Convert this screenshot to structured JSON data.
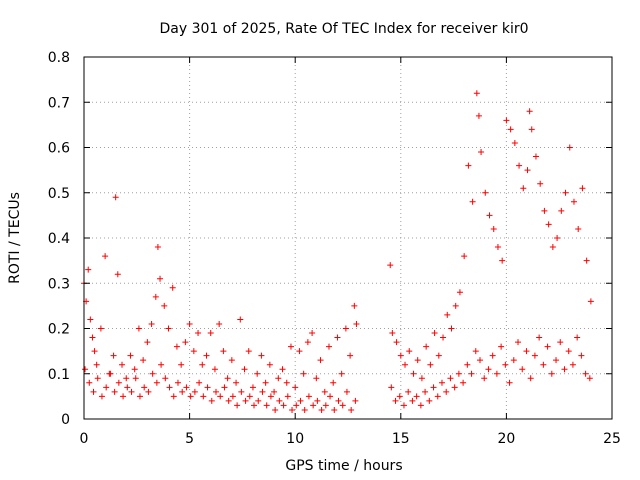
{
  "chart_data": {
    "type": "scatter",
    "title": "Day 301 of 2025, Rate Of TEC Index for receiver kir0",
    "xlabel": "GPS time / hours",
    "ylabel": "ROTI / TECUs",
    "xlim": [
      0,
      25
    ],
    "ylim": [
      0,
      0.8
    ],
    "x_ticks": [
      0,
      5,
      10,
      15,
      20,
      25
    ],
    "y_ticks": [
      0,
      0.1,
      0.2,
      0.3,
      0.4,
      0.5,
      0.6,
      0.7,
      0.8
    ],
    "x_tick_labels": [
      "0",
      "5",
      "10",
      "15",
      "20",
      "25"
    ],
    "y_tick_labels": [
      "0",
      "0.1",
      "0.2",
      "0.3",
      "0.4",
      "0.5",
      "0.6",
      "0.7",
      "0.8"
    ],
    "grid": true,
    "marker": "plus",
    "colors": {
      "points": "#ff0000",
      "grid": "#a0a0a0",
      "axes": "#000000"
    },
    "series": [
      {
        "x": [
          0.0,
          0.1,
          0.2,
          0.3,
          0.4,
          0.5,
          0.6,
          0.8,
          1.0,
          1.2,
          1.4,
          1.5,
          1.6,
          1.8,
          2.0,
          2.2,
          2.4,
          2.6,
          2.8,
          3.0,
          3.2,
          3.4,
          3.5,
          3.6,
          3.8,
          4.0,
          4.2,
          4.4,
          4.6,
          4.8,
          5.0,
          5.2,
          5.4,
          5.6,
          5.8,
          6.0,
          6.2,
          6.4,
          6.6,
          6.8,
          7.0,
          7.2,
          7.4,
          7.6,
          7.8,
          8.0,
          8.2,
          8.4,
          8.6,
          8.8,
          9.0,
          9.2,
          9.4,
          9.6,
          9.8,
          10.0,
          10.2,
          10.4,
          10.6,
          10.8,
          11.0,
          11.2,
          11.4,
          11.6,
          11.8,
          12.0,
          12.2,
          12.4,
          12.6,
          12.8,
          12.9,
          14.5,
          14.6,
          14.8,
          15.0,
          15.2,
          15.4,
          15.6,
          15.8,
          16.0,
          16.2,
          16.4,
          16.6,
          16.8,
          17.0,
          17.2,
          17.4,
          17.6,
          17.8,
          18.0,
          18.2,
          18.4,
          18.6,
          18.7,
          18.8,
          19.0,
          19.2,
          19.4,
          19.6,
          19.8,
          20.0,
          20.2,
          20.4,
          20.6,
          20.8,
          21.0,
          21.1,
          21.2,
          21.4,
          21.6,
          21.8,
          22.0,
          22.2,
          22.4,
          22.6,
          22.8,
          23.0,
          23.2,
          23.4,
          23.6,
          23.8,
          24.0
        ],
        "y": [
          0.3,
          0.26,
          0.33,
          0.22,
          0.18,
          0.15,
          0.12,
          0.2,
          0.36,
          0.1,
          0.14,
          0.49,
          0.32,
          0.12,
          0.09,
          0.14,
          0.11,
          0.2,
          0.13,
          0.17,
          0.21,
          0.27,
          0.38,
          0.31,
          0.25,
          0.2,
          0.29,
          0.16,
          0.12,
          0.17,
          0.21,
          0.15,
          0.19,
          0.12,
          0.14,
          0.19,
          0.11,
          0.21,
          0.15,
          0.09,
          0.13,
          0.08,
          0.22,
          0.11,
          0.15,
          0.07,
          0.1,
          0.14,
          0.08,
          0.12,
          0.06,
          0.09,
          0.11,
          0.08,
          0.16,
          0.07,
          0.15,
          0.1,
          0.17,
          0.19,
          0.09,
          0.13,
          0.06,
          0.16,
          0.08,
          0.18,
          0.1,
          0.2,
          0.14,
          0.25,
          0.21,
          0.34,
          0.19,
          0.17,
          0.14,
          0.12,
          0.15,
          0.1,
          0.13,
          0.09,
          0.16,
          0.12,
          0.19,
          0.14,
          0.18,
          0.23,
          0.2,
          0.25,
          0.28,
          0.36,
          0.56,
          0.48,
          0.72,
          0.67,
          0.59,
          0.5,
          0.45,
          0.42,
          0.38,
          0.35,
          0.66,
          0.64,
          0.61,
          0.56,
          0.51,
          0.55,
          0.68,
          0.64,
          0.58,
          0.52,
          0.46,
          0.43,
          0.38,
          0.4,
          0.46,
          0.5,
          0.6,
          0.48,
          0.42,
          0.51,
          0.35,
          0.26
        ]
      },
      {
        "x": [
          0.05,
          0.25,
          0.45,
          0.65,
          0.85,
          1.05,
          1.25,
          1.45,
          1.65,
          1.85,
          2.05,
          2.25,
          2.45,
          2.65,
          2.85,
          3.05,
          3.25,
          3.45,
          3.65,
          3.85,
          4.05,
          4.25,
          4.45,
          4.65,
          4.85,
          5.05,
          5.25,
          5.45,
          5.65,
          5.85,
          6.05,
          6.25,
          6.45,
          6.65,
          6.85,
          7.05,
          7.25,
          7.45,
          7.65,
          7.85,
          8.05,
          8.25,
          8.45,
          8.65,
          8.85,
          9.05,
          9.25,
          9.45,
          9.65,
          9.85,
          10.05,
          10.25,
          10.45,
          10.65,
          10.85,
          11.05,
          11.25,
          11.45,
          11.65,
          11.85,
          12.05,
          12.25,
          12.45,
          12.65,
          12.85,
          14.55,
          14.75,
          14.95,
          15.15,
          15.35,
          15.55,
          15.75,
          15.95,
          16.15,
          16.35,
          16.55,
          16.75,
          16.95,
          17.15,
          17.35,
          17.55,
          17.75,
          17.95,
          18.15,
          18.35,
          18.55,
          18.75,
          18.95,
          19.15,
          19.35,
          19.55,
          19.75,
          19.95,
          20.15,
          20.35,
          20.55,
          20.75,
          20.95,
          21.15,
          21.35,
          21.55,
          21.75,
          21.95,
          22.15,
          22.35,
          22.55,
          22.75,
          22.95,
          23.15,
          23.35,
          23.55,
          23.75,
          23.95
        ],
        "y": [
          0.11,
          0.08,
          0.06,
          0.09,
          0.05,
          0.07,
          0.1,
          0.06,
          0.08,
          0.05,
          0.07,
          0.06,
          0.09,
          0.05,
          0.07,
          0.06,
          0.1,
          0.08,
          0.12,
          0.09,
          0.07,
          0.05,
          0.08,
          0.06,
          0.07,
          0.05,
          0.06,
          0.08,
          0.05,
          0.07,
          0.04,
          0.06,
          0.05,
          0.07,
          0.04,
          0.05,
          0.03,
          0.06,
          0.04,
          0.05,
          0.03,
          0.04,
          0.06,
          0.03,
          0.05,
          0.02,
          0.04,
          0.03,
          0.05,
          0.02,
          0.03,
          0.04,
          0.02,
          0.05,
          0.03,
          0.04,
          0.02,
          0.03,
          0.05,
          0.02,
          0.04,
          0.03,
          0.06,
          0.02,
          0.04,
          0.07,
          0.04,
          0.05,
          0.03,
          0.06,
          0.04,
          0.05,
          0.03,
          0.06,
          0.04,
          0.07,
          0.05,
          0.08,
          0.06,
          0.09,
          0.07,
          0.1,
          0.08,
          0.12,
          0.1,
          0.15,
          0.13,
          0.09,
          0.11,
          0.14,
          0.1,
          0.16,
          0.12,
          0.08,
          0.13,
          0.17,
          0.11,
          0.15,
          0.09,
          0.14,
          0.18,
          0.12,
          0.16,
          0.1,
          0.13,
          0.17,
          0.11,
          0.15,
          0.12,
          0.18,
          0.14,
          0.1,
          0.09
        ]
      }
    ]
  }
}
